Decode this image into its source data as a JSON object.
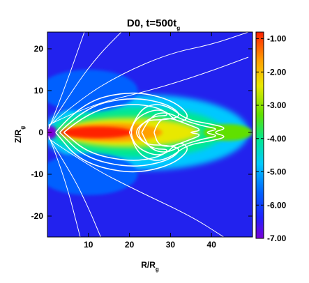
{
  "chart_data": {
    "type": "heatmap",
    "title": {
      "main": "D0, t=500t",
      "sub": "g"
    },
    "xlabel": {
      "main": "R/R",
      "sub": "g"
    },
    "ylabel": {
      "main": "Z/R",
      "sub": "g"
    },
    "xlim": [
      0,
      50
    ],
    "ylim": [
      -25,
      24
    ],
    "xticks": [
      10,
      20,
      30,
      40
    ],
    "yticks": [
      -20,
      -10,
      0,
      10,
      20
    ],
    "colorbar": {
      "range": [
        -7.0,
        -0.8
      ],
      "ticks": [
        "-1.00",
        "-2.00",
        "-3.00",
        "-4.00",
        "-5.00",
        "-6.00",
        "-7.00"
      ],
      "tick_values": [
        -1,
        -2,
        -3,
        -4,
        -5,
        -6,
        -7
      ],
      "colormap": [
        "#7a00d6",
        "#2020ff",
        "#0060ff",
        "#00c8ff",
        "#00e890",
        "#60e000",
        "#e8e800",
        "#ffa000",
        "#ff2000"
      ]
    },
    "background_color": "#2222ee",
    "contour_color": "#ffffff",
    "field_lines": [
      {
        "name": "outer-line-1",
        "points": [
          [
            0.3,
            0.8
          ],
          [
            4,
            10
          ],
          [
            9,
            24
          ]
        ]
      },
      {
        "name": "outer-line-2",
        "points": [
          [
            0.3,
            1.2
          ],
          [
            6,
            10
          ],
          [
            12,
            18
          ],
          [
            18,
            24
          ]
        ]
      },
      {
        "name": "outer-line-3",
        "points": [
          [
            0.3,
            1.5
          ],
          [
            8,
            8
          ],
          [
            18,
            14
          ],
          [
            30,
            19
          ],
          [
            40,
            21
          ],
          [
            49,
            24
          ]
        ]
      },
      {
        "name": "outer-line-4",
        "points": [
          [
            0.3,
            1.8
          ],
          [
            10,
            6.5
          ],
          [
            25,
            10
          ],
          [
            38,
            14
          ],
          [
            49,
            18
          ]
        ]
      },
      {
        "name": "lower-line-1",
        "points": [
          [
            0.3,
            -0.8
          ],
          [
            4,
            -10
          ],
          [
            8,
            -25
          ]
        ]
      },
      {
        "name": "lower-line-2",
        "points": [
          [
            0.3,
            -1.2
          ],
          [
            6,
            -10
          ],
          [
            10,
            -18
          ],
          [
            13,
            -25
          ]
        ]
      },
      {
        "name": "lower-line-3",
        "points": [
          [
            0.3,
            -1.5
          ],
          [
            10,
            -8
          ],
          [
            22,
            -14
          ],
          [
            35,
            -20
          ],
          [
            43,
            -25
          ]
        ]
      },
      {
        "name": "closed-loop-1",
        "points": [
          [
            2,
            0
          ],
          [
            8,
            7
          ],
          [
            20,
            10
          ],
          [
            30,
            8
          ],
          [
            35,
            4
          ],
          [
            32,
            2
          ],
          [
            28,
            6
          ],
          [
            22,
            4
          ],
          [
            20,
            0
          ],
          [
            22,
            -4
          ],
          [
            28,
            -6
          ],
          [
            32,
            -2
          ],
          [
            35,
            -4
          ],
          [
            30,
            -8
          ],
          [
            20,
            -10
          ],
          [
            8,
            -7
          ],
          [
            2,
            0
          ]
        ]
      },
      {
        "name": "closed-loop-2",
        "points": [
          [
            3,
            0
          ],
          [
            9,
            6
          ],
          [
            20,
            8.5
          ],
          [
            29,
            7
          ],
          [
            33,
            4
          ],
          [
            29,
            3
          ],
          [
            24,
            3
          ],
          [
            21,
            0
          ],
          [
            24,
            -3
          ],
          [
            29,
            -3
          ],
          [
            33,
            -4
          ],
          [
            29,
            -7
          ],
          [
            20,
            -8.5
          ],
          [
            9,
            -6
          ],
          [
            3,
            0
          ]
        ]
      },
      {
        "name": "closed-loop-3",
        "points": [
          [
            4,
            0
          ],
          [
            10,
            5
          ],
          [
            20,
            7
          ],
          [
            27,
            6
          ],
          [
            30,
            4
          ],
          [
            26,
            4
          ],
          [
            23,
            2
          ],
          [
            22,
            0
          ],
          [
            23,
            -2
          ],
          [
            26,
            -4
          ],
          [
            30,
            -4
          ],
          [
            27,
            -6
          ],
          [
            20,
            -7
          ],
          [
            10,
            -5
          ],
          [
            4,
            0
          ]
        ]
      },
      {
        "name": "inner-loop-1",
        "points": [
          [
            20,
            0
          ],
          [
            22,
            5
          ],
          [
            26,
            7
          ],
          [
            30,
            6
          ],
          [
            34,
            3
          ],
          [
            40,
            2
          ],
          [
            44,
            1
          ],
          [
            40,
            0
          ],
          [
            44,
            -1
          ],
          [
            40,
            -2
          ],
          [
            34,
            -3
          ],
          [
            30,
            -6
          ],
          [
            26,
            -7
          ],
          [
            22,
            -5
          ],
          [
            20,
            0
          ]
        ]
      },
      {
        "name": "inner-loop-2",
        "points": [
          [
            23,
            0
          ],
          [
            25,
            4
          ],
          [
            29,
            5
          ],
          [
            33,
            3
          ],
          [
            38,
            1.5
          ],
          [
            42,
            0.8
          ],
          [
            38,
            0
          ],
          [
            42,
            -0.8
          ],
          [
            38,
            -1.5
          ],
          [
            33,
            -3
          ],
          [
            29,
            -5
          ],
          [
            25,
            -4
          ],
          [
            23,
            0
          ]
        ]
      },
      {
        "name": "inner-loop-3",
        "points": [
          [
            26,
            0
          ],
          [
            27,
            3
          ],
          [
            30,
            3.5
          ],
          [
            34,
            2
          ],
          [
            38,
            0.5
          ],
          [
            34,
            0
          ],
          [
            38,
            -0.5
          ],
          [
            34,
            -2
          ],
          [
            30,
            -3.5
          ],
          [
            27,
            -3
          ],
          [
            26,
            0
          ]
        ]
      }
    ],
    "emission_structure": [
      {
        "name": "disk-outer-glow",
        "cx": 24,
        "cy": 0,
        "rx": 25,
        "ry": 9,
        "value": -4.8
      },
      {
        "name": "disk-green",
        "cx": 22,
        "cy": 0,
        "rx": 21,
        "ry": 6,
        "value": -3.8
      },
      {
        "name": "disk-yellow",
        "cx": 20,
        "cy": 0,
        "rx": 17,
        "ry": 3.5,
        "value": -2.4
      },
      {
        "name": "disk-orange",
        "cx": 16,
        "cy": 0,
        "rx": 12,
        "ry": 2.2,
        "value": -1.8
      },
      {
        "name": "disk-red",
        "cx": 12,
        "cy": 0,
        "rx": 9,
        "ry": 1.4,
        "value": -1.0
      },
      {
        "name": "jet-tail",
        "cx": 44,
        "cy": 0,
        "rx": 6,
        "ry": 2,
        "value": -3.5
      },
      {
        "name": "inner-purple",
        "cx": 0.8,
        "cy": 0,
        "rx": 1.5,
        "ry": 1.6,
        "value": -6.8
      },
      {
        "name": "upper-halo",
        "cx": 10,
        "cy": 10,
        "rx": 12,
        "ry": 5,
        "value": -5.2
      },
      {
        "name": "lower-halo",
        "cx": 10,
        "cy": -10,
        "rx": 12,
        "ry": 5,
        "value": -5.2
      }
    ]
  }
}
